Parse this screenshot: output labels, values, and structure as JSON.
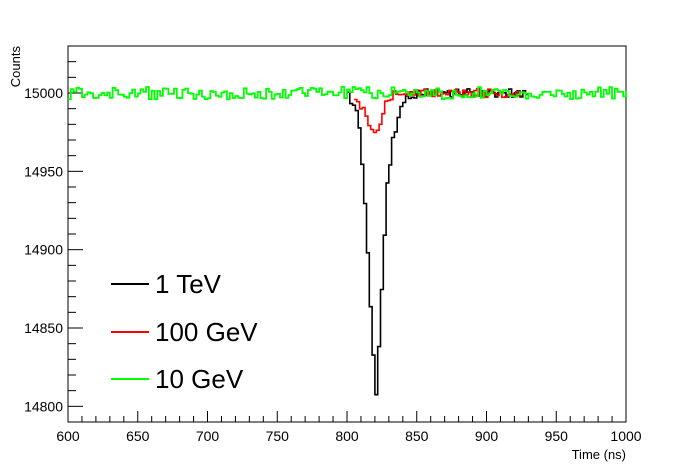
{
  "chart_data": {
    "type": "line",
    "title": "",
    "xlabel": "Time (ns)",
    "ylabel": "Counts",
    "xlim": [
      600,
      1000
    ],
    "ylim": [
      14790,
      15030
    ],
    "x_ticks": [
      600,
      650,
      700,
      750,
      800,
      850,
      900,
      950,
      1000
    ],
    "y_ticks": [
      14800,
      14850,
      14900,
      14950,
      15000
    ],
    "legend_position": "bottom-left",
    "grid": false,
    "baseline": 15000,
    "series": [
      {
        "name": "1 TeV",
        "color": "#000000",
        "points": [
          [
            800,
            14998
          ],
          [
            804,
            14994
          ],
          [
            808,
            14980
          ],
          [
            812,
            14930
          ],
          [
            815,
            14880
          ],
          [
            818,
            14830
          ],
          [
            820,
            14810
          ],
          [
            822,
            14840
          ],
          [
            825,
            14890
          ],
          [
            828,
            14940
          ],
          [
            832,
            14970
          ],
          [
            836,
            14985
          ],
          [
            840,
            14993
          ],
          [
            845,
            14999
          ],
          [
            850,
            15000
          ]
        ]
      },
      {
        "name": "100 GeV",
        "color": "#ff0000",
        "points": [
          [
            805,
            14998
          ],
          [
            810,
            14990
          ],
          [
            815,
            14980
          ],
          [
            818,
            14975
          ],
          [
            822,
            14980
          ],
          [
            826,
            14990
          ],
          [
            830,
            14998
          ],
          [
            834,
            15000
          ]
        ]
      },
      {
        "name": "10 GeV",
        "color": "#00ff00",
        "points": [
          [
            600,
            15000
          ],
          [
            1000,
            15000
          ]
        ],
        "noise_amplitude": 4
      }
    ]
  }
}
